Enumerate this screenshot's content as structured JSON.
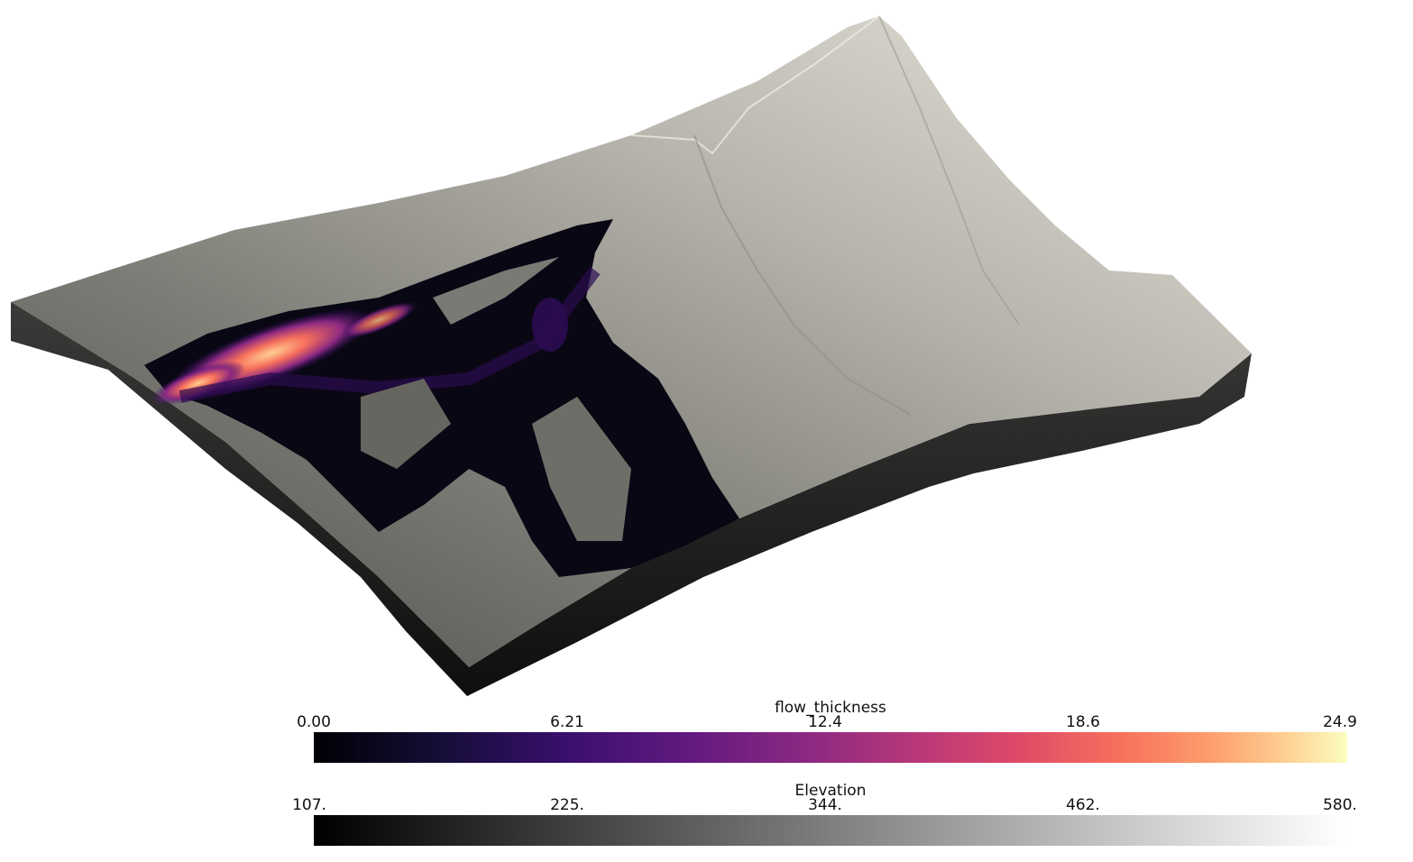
{
  "scene": {
    "description_icon": "terrain-3d-render",
    "background_color": "#ffffff",
    "terrain_top_color": "#c9c7bf",
    "terrain_side_color": "#2a2a2a",
    "flow_colormap": "magma"
  },
  "colorbars": [
    {
      "title": "flow_thickness",
      "ticks": [
        "0.00",
        "6.21",
        "12.4",
        "18.6",
        "24.9"
      ],
      "range": [
        0.0,
        24.9
      ],
      "colormap": "magma"
    },
    {
      "title": "Elevation",
      "ticks": [
        "107.",
        "225.",
        "344.",
        "462.",
        "580."
      ],
      "range": [
        107,
        580
      ],
      "colormap": "grayscale"
    }
  ]
}
